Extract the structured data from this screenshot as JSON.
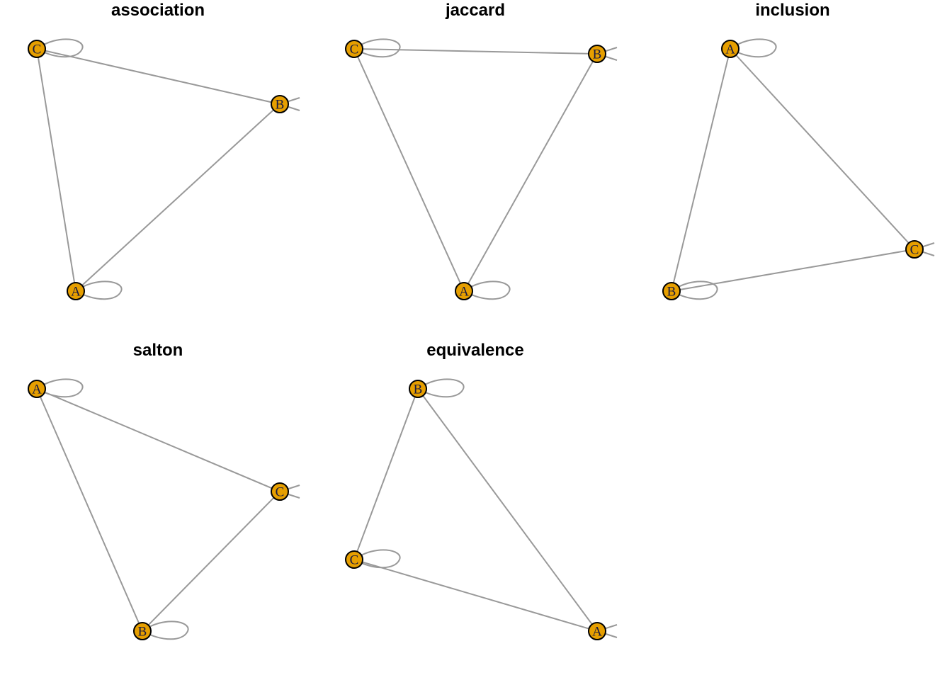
{
  "colors": {
    "node_fill": "#E69F00",
    "node_stroke": "#000000",
    "edge": "#999999",
    "title": "#000000"
  },
  "panels": [
    {
      "title": "association",
      "nodes": [
        "C",
        "B",
        "A"
      ],
      "edges": [
        [
          "C",
          "B"
        ],
        [
          "C",
          "A"
        ],
        [
          "B",
          "A"
        ]
      ],
      "self_loops": [
        "C",
        "B",
        "A"
      ]
    },
    {
      "title": "jaccard",
      "nodes": [
        "C",
        "B",
        "A"
      ],
      "edges": [
        [
          "C",
          "B"
        ],
        [
          "C",
          "A"
        ],
        [
          "B",
          "A"
        ]
      ],
      "self_loops": [
        "C",
        "B",
        "A"
      ]
    },
    {
      "title": "inclusion",
      "nodes": [
        "A",
        "C",
        "B"
      ],
      "edges": [
        [
          "A",
          "C"
        ],
        [
          "A",
          "B"
        ],
        [
          "B",
          "C"
        ]
      ],
      "self_loops": [
        "A",
        "C",
        "B"
      ]
    },
    {
      "title": "salton",
      "nodes": [
        "A",
        "C",
        "B"
      ],
      "edges": [
        [
          "A",
          "C"
        ],
        [
          "A",
          "B"
        ],
        [
          "C",
          "B"
        ]
      ],
      "self_loops": [
        "A",
        "C",
        "B"
      ]
    },
    {
      "title": "equivalence",
      "nodes": [
        "B",
        "C",
        "A"
      ],
      "edges": [
        [
          "B",
          "C"
        ],
        [
          "B",
          "A"
        ],
        [
          "C",
          "A"
        ]
      ],
      "self_loops": [
        "B",
        "C",
        "A"
      ]
    }
  ]
}
